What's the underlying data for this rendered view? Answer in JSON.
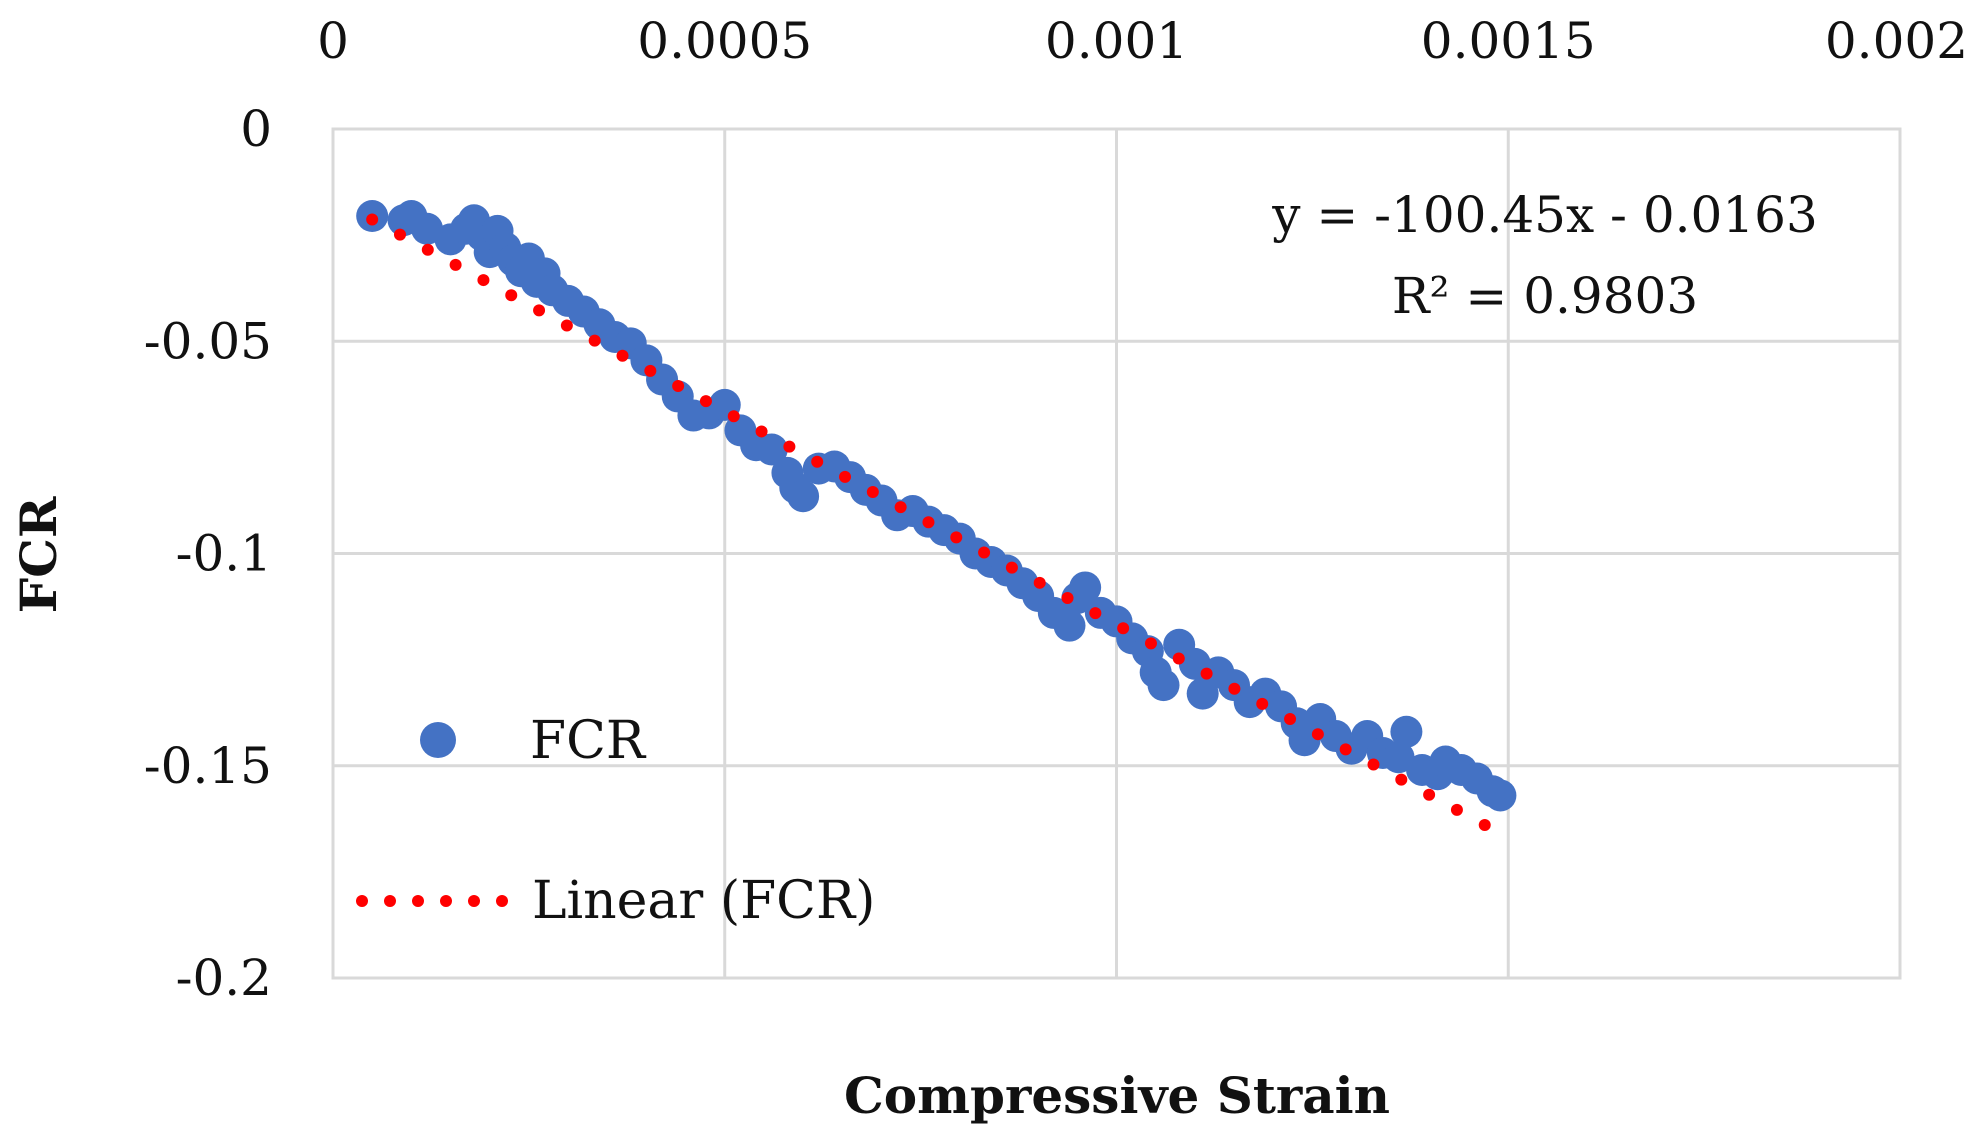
{
  "chart_data": {
    "type": "scatter",
    "title": "",
    "xlabel": "Compressive Strain",
    "ylabel": "FCR",
    "xlim": [
      0,
      0.002
    ],
    "ylim": [
      -0.2,
      0
    ],
    "xticks": [
      0,
      0.0005,
      0.001,
      0.0015,
      0.002
    ],
    "xtick_labels": [
      "0",
      "0.0005",
      "0.001",
      "0.0015",
      "0.002"
    ],
    "yticks": [
      0,
      -0.05,
      -0.1,
      -0.15,
      -0.2
    ],
    "ytick_labels": [
      "0",
      "-0.05",
      "-0.1",
      "-0.15",
      "-0.2"
    ],
    "x_axis_position": "top",
    "grid": true,
    "legend_position": "bottom-left",
    "series": [
      {
        "name": "FCR",
        "kind": "scatter",
        "color": "#4472C4",
        "points": [
          [
            5e-05,
            -0.0205
          ],
          [
            9e-05,
            -0.0215
          ],
          [
            0.00012,
            -0.0235
          ],
          [
            0.00015,
            -0.026
          ],
          [
            0.00017,
            -0.0235
          ],
          [
            0.00018,
            -0.0215
          ],
          [
            0.00019,
            -0.025
          ],
          [
            0.0002,
            -0.029
          ],
          [
            0.00021,
            -0.024
          ],
          [
            0.00022,
            -0.028
          ],
          [
            0.00023,
            -0.031
          ],
          [
            0.00024,
            -0.0335
          ],
          [
            0.00025,
            -0.0305
          ],
          [
            0.00026,
            -0.036
          ],
          [
            0.00027,
            -0.034
          ],
          [
            0.00028,
            -0.038
          ],
          [
            0.0003,
            -0.0405
          ],
          [
            0.00032,
            -0.043
          ],
          [
            0.00034,
            -0.046
          ],
          [
            0.00036,
            -0.049
          ],
          [
            0.00038,
            -0.0505
          ],
          [
            0.0004,
            -0.0545
          ],
          [
            0.00042,
            -0.059
          ],
          [
            0.00044,
            -0.063
          ],
          [
            0.00046,
            -0.0675
          ],
          [
            0.00048,
            -0.067
          ],
          [
            0.0005,
            -0.065
          ],
          [
            0.00052,
            -0.071
          ],
          [
            0.00054,
            -0.0745
          ],
          [
            0.00056,
            -0.0755
          ],
          [
            0.00058,
            -0.081
          ],
          [
            0.00059,
            -0.0845
          ],
          [
            0.0006,
            -0.0865
          ],
          [
            0.00062,
            -0.08
          ],
          [
            0.00064,
            -0.0795
          ],
          [
            0.00066,
            -0.082
          ],
          [
            0.00068,
            -0.085
          ],
          [
            0.0007,
            -0.0875
          ],
          [
            0.00072,
            -0.091
          ],
          [
            0.00074,
            -0.09
          ],
          [
            0.00076,
            -0.0925
          ],
          [
            0.00078,
            -0.0945
          ],
          [
            0.0008,
            -0.0965
          ],
          [
            0.00082,
            -0.1
          ],
          [
            0.00084,
            -0.102
          ],
          [
            0.00086,
            -0.104
          ],
          [
            0.00088,
            -0.107
          ],
          [
            0.0009,
            -0.11
          ],
          [
            0.00092,
            -0.114
          ],
          [
            0.00094,
            -0.117
          ],
          [
            0.00095,
            -0.1105
          ],
          [
            0.00096,
            -0.108
          ],
          [
            0.00098,
            -0.114
          ],
          [
            0.001,
            -0.116
          ],
          [
            0.00102,
            -0.12
          ],
          [
            0.00104,
            -0.123
          ],
          [
            0.00105,
            -0.128
          ],
          [
            0.00106,
            -0.131
          ],
          [
            0.00108,
            -0.1215
          ],
          [
            0.0001,
            -0.0205
          ],
          [
            0.0011,
            -0.126
          ],
          [
            0.00111,
            -0.133
          ],
          [
            0.00113,
            -0.128
          ],
          [
            0.00115,
            -0.131
          ],
          [
            0.00117,
            -0.135
          ],
          [
            0.00119,
            -0.133
          ],
          [
            0.00121,
            -0.136
          ],
          [
            0.00123,
            -0.14
          ],
          [
            0.00124,
            -0.144
          ],
          [
            0.00126,
            -0.139
          ],
          [
            0.00128,
            -0.143
          ],
          [
            0.0013,
            -0.146
          ],
          [
            0.00132,
            -0.143
          ],
          [
            0.00134,
            -0.147
          ],
          [
            0.00136,
            -0.148
          ],
          [
            0.00137,
            -0.142
          ],
          [
            0.00139,
            -0.151
          ],
          [
            0.00141,
            -0.152
          ],
          [
            0.00142,
            -0.149
          ],
          [
            0.00144,
            -0.151
          ],
          [
            0.00146,
            -0.153
          ],
          [
            0.00148,
            -0.156
          ],
          [
            0.00149,
            -0.157
          ]
        ]
      },
      {
        "name": "Linear (FCR)",
        "kind": "trendline",
        "color": "#FF0000",
        "style": "dotted",
        "slope": -100.45,
        "intercept": -0.0163,
        "x_range": [
          5e-05,
          0.00147
        ]
      }
    ],
    "annotations": [
      {
        "text": "y = -100.45x - 0.0163"
      },
      {
        "text": "R² = 0.9803"
      }
    ]
  }
}
